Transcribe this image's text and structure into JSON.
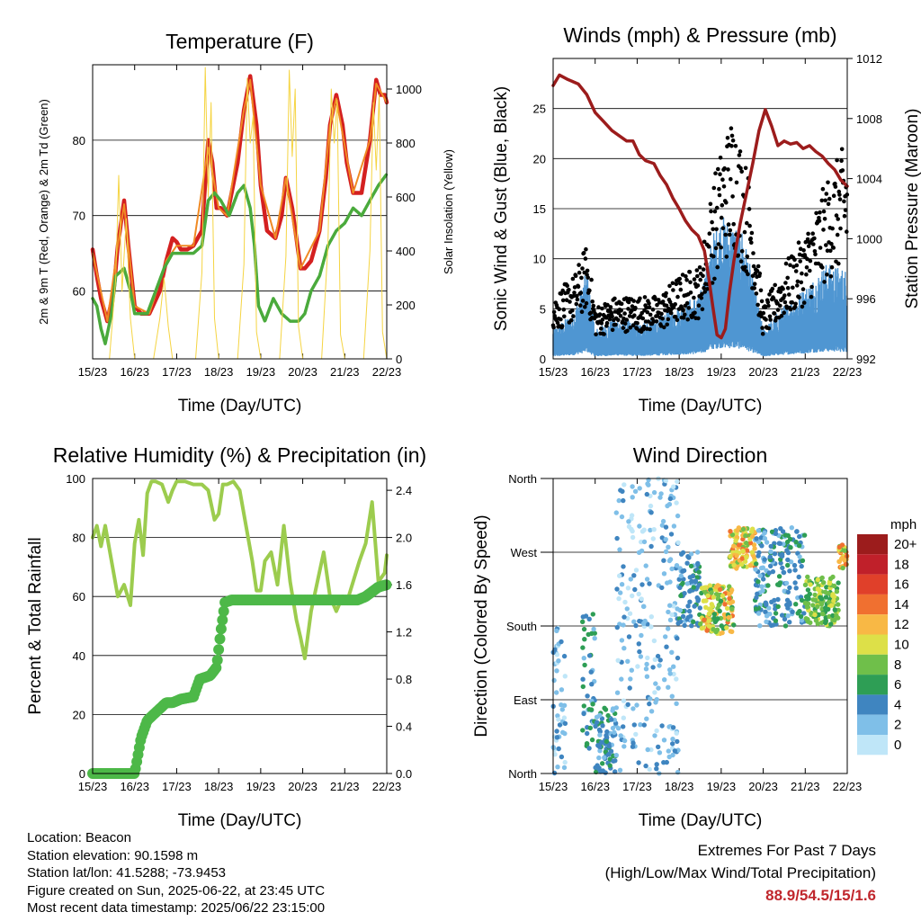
{
  "chart_data": [
    {
      "type": "line",
      "title": "Temperature (F)",
      "xlabel": "Time (Day/UTC)",
      "ylabel": "2m & 9m T (Red, Orange) & 2m Td (Green)",
      "ylabel_right": "Solar Insolation (Yellow)",
      "x_ticks": [
        "15/23",
        "16/23",
        "17/23",
        "18/23",
        "19/23",
        "20/23",
        "21/23",
        "22/23"
      ],
      "ylim": [
        51,
        90
      ],
      "y_ticks": [
        60,
        70,
        80
      ],
      "ylim_right": [
        0,
        1090
      ],
      "y_ticks_right": [
        0,
        200,
        400,
        600,
        800,
        1000
      ],
      "grid": true,
      "series": [
        {
          "name": "2m T",
          "color": "#d42020",
          "axis": "left",
          "x": [
            0,
            0.1,
            0.2,
            0.35,
            0.5,
            0.6,
            0.75,
            0.85,
            1.0,
            1.15,
            1.35,
            1.6,
            1.75,
            1.9,
            2.0,
            2.1,
            2.25,
            2.4,
            2.6,
            2.75,
            2.85,
            2.95,
            3.05,
            3.2,
            3.45,
            3.6,
            3.75,
            3.9,
            4.0,
            4.15,
            4.35,
            4.5,
            4.6,
            4.75,
            4.95,
            5.05,
            5.2,
            5.4,
            5.55,
            5.65,
            5.8,
            5.95,
            6.05,
            6.2,
            6.4,
            6.6,
            6.75,
            6.85,
            6.95,
            7.0
          ],
          "y": [
            65.5,
            62,
            59,
            56,
            60,
            66,
            72,
            66,
            58,
            57,
            57,
            60,
            64,
            67,
            66.5,
            65.5,
            65.5,
            66,
            68,
            80,
            77,
            71,
            71,
            70,
            77,
            84,
            88.5,
            82,
            74,
            68,
            67,
            70,
            75,
            71,
            63,
            63,
            64,
            68,
            75,
            82,
            86,
            82,
            77,
            73,
            73,
            80,
            88,
            86,
            86,
            85
          ]
        },
        {
          "name": "9m T",
          "color": "#f08a24",
          "axis": "left",
          "x": [
            0,
            0.35,
            0.6,
            0.75,
            1.0,
            1.35,
            1.75,
            2.0,
            2.4,
            2.75,
            3.0,
            3.2,
            3.6,
            3.75,
            4.0,
            4.35,
            4.6,
            4.95,
            5.4,
            5.65,
            5.8,
            6.2,
            6.6,
            6.75,
            7.0
          ],
          "y": [
            65,
            56,
            66,
            71.5,
            58,
            57,
            64,
            66,
            66,
            79,
            71,
            70,
            84,
            88,
            74,
            67,
            75,
            63,
            68,
            82,
            85.5,
            73,
            80,
            87.5,
            85
          ]
        },
        {
          "name": "2m Td",
          "color": "#4aaa3c",
          "axis": "left",
          "x": [
            0,
            0.1,
            0.2,
            0.3,
            0.45,
            0.55,
            0.75,
            0.9,
            1.0,
            1.15,
            1.3,
            1.5,
            1.7,
            1.9,
            2.0,
            2.2,
            2.4,
            2.6,
            2.75,
            2.9,
            3.05,
            3.25,
            3.45,
            3.6,
            3.75,
            3.85,
            3.95,
            4.1,
            4.3,
            4.5,
            4.7,
            4.9,
            5.05,
            5.2,
            5.4,
            5.6,
            5.8,
            6.0,
            6.2,
            6.4,
            6.6,
            6.8,
            7.0
          ],
          "y": [
            59,
            58,
            55,
            53,
            57,
            62,
            63,
            60,
            57,
            57,
            57,
            60,
            63,
            65,
            65,
            65,
            65,
            66,
            72,
            73,
            72,
            70,
            73,
            74,
            71,
            66,
            58,
            56,
            59,
            57,
            56,
            56,
            57,
            60,
            62,
            66,
            68,
            69,
            71,
            70,
            72,
            74,
            75.5
          ]
        },
        {
          "name": "Solar Insolation",
          "color": "#f5d442",
          "axis": "right",
          "x": [
            0,
            0.2,
            0.4,
            0.55,
            0.62,
            0.7,
            0.8,
            0.9,
            1.0,
            1.15,
            1.3,
            1.45,
            1.6,
            1.7,
            1.8,
            1.9,
            2.0,
            2.15,
            2.3,
            2.45,
            2.6,
            2.68,
            2.75,
            2.82,
            2.9,
            3.0,
            3.15,
            3.3,
            3.45,
            3.6,
            3.68,
            3.75,
            3.82,
            3.9,
            4.0,
            4.15,
            4.3,
            4.45,
            4.6,
            4.68,
            4.75,
            4.82,
            4.9,
            5.0,
            5.15,
            5.3,
            5.45,
            5.6,
            5.68,
            5.75,
            5.82,
            5.9,
            6.0,
            6.15,
            6.3,
            6.45,
            6.6,
            6.68,
            6.75,
            6.82,
            6.9,
            7.0
          ],
          "y": [
            0,
            0,
            0,
            300,
            680,
            250,
            520,
            150,
            0,
            0,
            0,
            0,
            150,
            300,
            120,
            0,
            0,
            0,
            0,
            0,
            320,
            1080,
            600,
            950,
            150,
            0,
            0,
            0,
            0,
            350,
            1040,
            800,
            900,
            100,
            0,
            0,
            0,
            0,
            380,
            1070,
            750,
            1000,
            120,
            0,
            0,
            0,
            0,
            420,
            1000,
            800,
            960,
            90,
            0,
            0,
            0,
            0,
            400,
            950,
            700,
            980,
            100,
            0
          ]
        }
      ]
    },
    {
      "type": "scatter",
      "title": "Winds (mph) & Pressure (mb)",
      "xlabel": "Time (Day/UTC)",
      "ylabel": "Sonic Wind & Gust (Blue, Black)",
      "ylabel_right": "Station Pressure (Maroon)",
      "x_ticks": [
        "15/23",
        "16/23",
        "17/23",
        "18/23",
        "19/23",
        "20/23",
        "21/23",
        "22/23"
      ],
      "ylim": [
        0,
        30
      ],
      "y_ticks": [
        0,
        5,
        10,
        15,
        20,
        25
      ],
      "ylim_right": [
        992,
        1012
      ],
      "y_ticks_right": [
        992,
        996,
        1000,
        1004,
        1008,
        1012
      ],
      "grid": true,
      "series": [
        {
          "name": "Station Pressure",
          "color": "#9c1c1c",
          "axis": "right",
          "x": [
            0,
            0.15,
            0.35,
            0.6,
            0.8,
            1.0,
            1.2,
            1.4,
            1.6,
            1.75,
            1.9,
            2.05,
            2.2,
            2.4,
            2.55,
            2.7,
            2.85,
            3.0,
            3.15,
            3.3,
            3.45,
            3.6,
            3.7,
            3.8,
            3.9,
            4.0,
            4.1,
            4.2,
            4.3,
            4.45,
            4.6,
            4.75,
            4.9,
            5.05,
            5.2,
            5.35,
            5.5,
            5.65,
            5.8,
            5.95,
            6.1,
            6.25,
            6.4,
            6.55,
            6.7,
            6.85,
            7.0
          ],
          "y": [
            1010.2,
            1010.9,
            1010.6,
            1010.3,
            1009.6,
            1008.4,
            1007.8,
            1007.2,
            1006.8,
            1006.5,
            1006.5,
            1005.6,
            1005.2,
            1005.0,
            1004.2,
            1003.6,
            1002.7,
            1002.0,
            1001.2,
            1000.6,
            1000.2,
            999.2,
            997.5,
            995.5,
            993.6,
            993.4,
            994.0,
            996.5,
            998.5,
            1001.0,
            1003.0,
            1005.0,
            1007.2,
            1008.6,
            1007.5,
            1006.2,
            1006.5,
            1006.3,
            1006.4,
            1006.0,
            1006.2,
            1005.8,
            1005.5,
            1005.0,
            1004.6,
            1003.9,
            1003.5
          ]
        }
      ],
      "wind_mean_envelope": {
        "x": [
          0,
          0.5,
          0.8,
          1.0,
          1.5,
          2.0,
          2.5,
          3.0,
          3.5,
          3.8,
          4.0,
          4.5,
          5.0,
          5.5,
          6.0,
          6.5,
          7.0
        ],
        "y": [
          2.5,
          4.0,
          7.5,
          2.5,
          3.5,
          3.0,
          3.5,
          4.5,
          5.5,
          10.5,
          12.0,
          11.0,
          2.5,
          4.5,
          6.0,
          8.0,
          7.5
        ]
      },
      "wind_gust_envelope": {
        "x": [
          0,
          0.5,
          0.8,
          1.0,
          1.5,
          2.0,
          2.5,
          3.0,
          3.5,
          3.8,
          4.0,
          4.3,
          4.5,
          4.7,
          5.0,
          5.5,
          6.0,
          6.5,
          7.0
        ],
        "y": [
          6,
          8,
          11,
          5,
          6,
          6,
          6,
          8,
          9,
          17,
          20,
          24,
          20,
          17,
          5,
          9,
          12,
          17,
          21
        ]
      }
    },
    {
      "type": "line",
      "title": "Relative Humidity (%) & Precipitation (in)",
      "xlabel": "Time (Day/UTC)",
      "ylabel": "Percent & Total Rainfall",
      "x_ticks": [
        "15/23",
        "16/23",
        "17/23",
        "18/23",
        "19/23",
        "20/23",
        "21/23",
        "22/23"
      ],
      "ylim": [
        0,
        100
      ],
      "y_ticks": [
        0,
        20,
        40,
        60,
        80,
        100
      ],
      "ylim_right": [
        0,
        2.5
      ],
      "y_ticks_right": [
        "0.0",
        "0.4",
        "0.8",
        "1.2",
        "1.6",
        "2.0",
        "2.4"
      ],
      "grid": true,
      "series": [
        {
          "name": "Relative Humidity",
          "color": "#9ccc4e",
          "axis": "left",
          "x": [
            0,
            0.1,
            0.2,
            0.3,
            0.45,
            0.6,
            0.75,
            0.9,
            1.0,
            1.1,
            1.2,
            1.3,
            1.4,
            1.5,
            1.65,
            1.8,
            1.9,
            2.0,
            2.2,
            2.4,
            2.6,
            2.75,
            2.9,
            3.0,
            3.1,
            3.2,
            3.35,
            3.5,
            3.65,
            3.8,
            3.9,
            4.0,
            4.1,
            4.25,
            4.4,
            4.55,
            4.7,
            4.85,
            4.95,
            5.05,
            5.2,
            5.35,
            5.5,
            5.65,
            5.8,
            5.95,
            6.05,
            6.2,
            6.35,
            6.5,
            6.65,
            6.8,
            6.95,
            7.0
          ],
          "y": [
            80,
            84,
            77,
            84,
            72,
            60,
            64,
            57,
            78,
            86,
            74,
            95,
            99,
            99,
            98,
            92,
            96,
            99,
            99,
            98,
            98,
            96,
            86,
            88,
            98,
            98,
            99,
            96,
            84,
            72,
            62,
            62,
            72,
            75,
            64,
            84,
            65,
            52,
            46,
            39,
            55,
            65,
            75,
            60,
            55,
            60,
            58,
            65,
            72,
            78,
            92,
            65,
            68,
            74
          ]
        },
        {
          "name": "Total Rainfall",
          "color": "#4db848",
          "axis": "right",
          "x": [
            0,
            0.5,
            1.0,
            1.15,
            1.3,
            1.6,
            1.75,
            1.9,
            2.1,
            2.4,
            2.55,
            2.8,
            2.95,
            3.05,
            3.15,
            3.3,
            4.0,
            5.0,
            6.0,
            6.3,
            6.5,
            6.8,
            7.0
          ],
          "y": [
            0,
            0,
            0,
            0.3,
            0.45,
            0.55,
            0.6,
            0.6,
            0.63,
            0.65,
            0.8,
            0.83,
            0.9,
            1.2,
            1.45,
            1.47,
            1.47,
            1.47,
            1.47,
            1.47,
            1.5,
            1.58,
            1.6
          ]
        }
      ]
    },
    {
      "type": "scatter",
      "title": "Wind Direction",
      "xlabel": "Time (Day/UTC)",
      "ylabel": "Direction (Colored By Speed)",
      "x_ticks": [
        "15/23",
        "16/23",
        "17/23",
        "18/23",
        "19/23",
        "20/23",
        "21/23",
        "22/23"
      ],
      "y_ticks": [
        "North",
        "East",
        "South",
        "West",
        "North"
      ],
      "grid": true,
      "colorbar": {
        "title": "mph",
        "labels": [
          "0",
          "2",
          "4",
          "6",
          "8",
          "10",
          "12",
          "14",
          "16",
          "18",
          "20+"
        ],
        "colors": [
          "#bfe6f8",
          "#7fbfe8",
          "#3f85c0",
          "#2e9e55",
          "#6fbf4a",
          "#dde048",
          "#f8b845",
          "#f07030",
          "#e0402a",
          "#c0202a",
          "#9c1c1c"
        ]
      },
      "clusters": [
        {
          "x": [
            0,
            0.3
          ],
          "dir": [
            0,
            180
          ],
          "speed": [
            0,
            4
          ]
        },
        {
          "x": [
            0.7,
            1.0
          ],
          "dir": [
            30,
            200
          ],
          "speed": [
            2,
            7
          ]
        },
        {
          "x": [
            1.0,
            1.5
          ],
          "dir": [
            0,
            80
          ],
          "speed": [
            2,
            6
          ]
        },
        {
          "x": [
            1.5,
            3.0
          ],
          "dir": [
            0,
            360
          ],
          "speed": [
            0,
            4
          ]
        },
        {
          "x": [
            3.0,
            3.5
          ],
          "dir": [
            180,
            270
          ],
          "speed": [
            2,
            6
          ]
        },
        {
          "x": [
            3.5,
            4.3
          ],
          "dir": [
            170,
            230
          ],
          "speed": [
            6,
            14
          ]
        },
        {
          "x": [
            4.2,
            4.8
          ],
          "dir": [
            250,
            300
          ],
          "speed": [
            8,
            14
          ]
        },
        {
          "x": [
            4.8,
            6.0
          ],
          "dir": [
            180,
            300
          ],
          "speed": [
            2,
            6
          ]
        },
        {
          "x": [
            6.0,
            6.8
          ],
          "dir": [
            180,
            240
          ],
          "speed": [
            6,
            10
          ]
        },
        {
          "x": [
            6.8,
            7.0
          ],
          "dir": [
            250,
            280
          ],
          "speed": [
            8,
            14
          ]
        }
      ]
    }
  ],
  "info": {
    "location": "Location: Beacon",
    "elevation": "Station elevation: 90.1598 m",
    "latlon": "Station lat/lon: 41.5288; -73.9453",
    "created": "Figure created on Sun, 2025-06-22, at 23:45 UTC",
    "recent": "Most recent data timestamp: 2025/06/22 23:15:00"
  },
  "extremes": {
    "title": "Extremes For Past 7 Days",
    "subtitle": "(High/Low/Max Wind/Total Precipitation)",
    "values": "88.9/54.5/15/1.6"
  }
}
